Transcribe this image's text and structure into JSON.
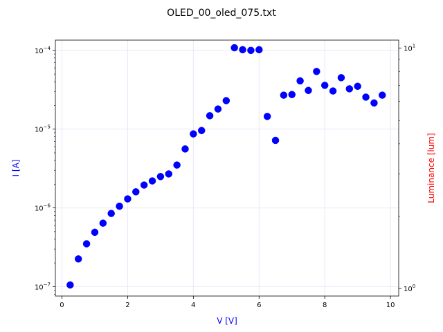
{
  "chart_data": {
    "type": "scatter",
    "title": "OLED_00_oled_075.txt",
    "xlabel": "V [V]",
    "ylabel": "I [A]",
    "y2label": "Luminance [lum]",
    "xlim": [
      -0.2,
      10.25
    ],
    "ylim": [
      7.6e-08,
      0.000135
    ],
    "y_scale": "log",
    "y2lim": [
      0.93,
      10.8
    ],
    "y2_scale": "log",
    "x_ticks": [
      0,
      2,
      4,
      6,
      8,
      10
    ],
    "x_tick_labels": [
      "0",
      "2",
      "4",
      "6",
      "8",
      "10"
    ],
    "y_ticks": [
      1e-07,
      1e-06,
      1e-05,
      0.0001
    ],
    "y_tick_labels": [
      {
        "base": "10",
        "exp": "−7"
      },
      {
        "base": "10",
        "exp": "−6"
      },
      {
        "base": "10",
        "exp": "−5"
      },
      {
        "base": "10",
        "exp": "−4"
      }
    ],
    "y2_ticks": [
      1,
      10
    ],
    "y2_tick_labels": [
      {
        "base": "10",
        "exp": "0"
      },
      {
        "base": "10",
        "exp": "1"
      }
    ],
    "grid": true,
    "series": [
      {
        "color": "#0000ff",
        "x": [
          0.25,
          0.5,
          0.75,
          1.0,
          1.25,
          1.5,
          1.75,
          2.0,
          2.25,
          2.5,
          2.75,
          3.0,
          3.25,
          3.5,
          3.75,
          4.0,
          4.25,
          4.5,
          4.75,
          5.0,
          5.25,
          5.5,
          5.75,
          6.0,
          6.25,
          6.5,
          6.75,
          7.0,
          7.25,
          7.5,
          7.75,
          8.0,
          8.25,
          8.5,
          8.75,
          9.0,
          9.25,
          9.5,
          9.75
        ],
        "y": [
          1.05e-07,
          2.25e-07,
          3.5e-07,
          4.9e-07,
          6.4e-07,
          8.5e-07,
          1.05e-06,
          1.3e-06,
          1.6e-06,
          1.95e-06,
          2.2e-06,
          2.5e-06,
          2.7e-06,
          3.5e-06,
          5.6e-06,
          8.7e-06,
          9.6e-06,
          1.48e-05,
          1.8e-05,
          2.3e-05,
          0.000108,
          0.000102,
          0.0001,
          0.000102,
          1.45e-05,
          7.2e-06,
          2.7e-05,
          2.75e-05,
          4.1e-05,
          3.1e-05,
          5.4e-05,
          3.6e-05,
          3.05e-05,
          4.5e-05,
          3.25e-05,
          3.5e-05,
          2.55e-05,
          2.15e-05,
          2.7e-05
        ]
      }
    ],
    "colors": {
      "xlabel": "#0000ff",
      "ylabel": "#0000ff",
      "y2label": "#ff0000",
      "grid": "#e8e8f8",
      "frame": "#000000"
    }
  }
}
